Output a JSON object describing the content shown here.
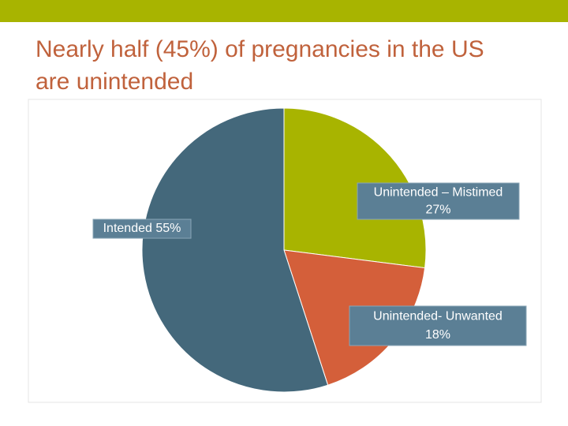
{
  "chart_data": {
    "type": "pie",
    "title": "Nearly half (45%) of pregnancies in the US are unintended",
    "categories": [
      "Unintended – Mistimed",
      "Unintended- Unwanted",
      "Intended"
    ],
    "values": [
      27,
      18,
      55
    ],
    "value_labels": [
      "27%",
      "18%",
      "55%"
    ],
    "colors": [
      "#a8b400",
      "#d45f3a",
      "#44687b"
    ]
  }
}
